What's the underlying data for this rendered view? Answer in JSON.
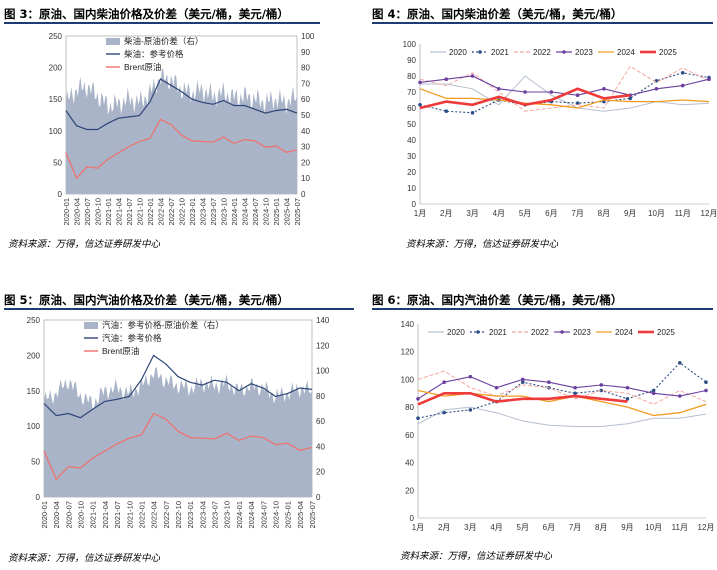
{
  "panels": {
    "p3": {
      "title": "图 3：原油、国内柴油价格及价差（美元/桶，美元/桶）",
      "source": "资料来源：万得，信达证券研发中心",
      "legend": [
        "柴油-原油价差（右）",
        "柴油：参考价格",
        "Brent原油"
      ],
      "y_left_ticks": [
        "0",
        "50",
        "100",
        "150",
        "200",
        "250"
      ],
      "y_right_ticks": [
        "0",
        "10",
        "20",
        "30",
        "40",
        "50",
        "60",
        "70",
        "80",
        "90",
        "100"
      ],
      "x_ticks": [
        "2020-01",
        "2020-04",
        "2020-07",
        "2020-10",
        "2021-01",
        "2021-04",
        "2021-07",
        "2021-10",
        "2022-01",
        "2022-04",
        "2022-07",
        "2022-10",
        "2023-01",
        "2023-04",
        "2023-07",
        "2023-10",
        "2024-01",
        "2024-04",
        "2024-07",
        "2024-10",
        "2025-01",
        "2025-04",
        "2025-07"
      ]
    },
    "p4": {
      "title": "图 4：原油、国内柴油价差（美元/桶，美元/桶）",
      "source": "资料来源：万得，信达证券研发中心",
      "legend": [
        "2020",
        "2021",
        "2022",
        "2023",
        "2024",
        "2025"
      ],
      "y_ticks": [
        "0",
        "10",
        "20",
        "30",
        "40",
        "50",
        "60",
        "70",
        "80",
        "90",
        "100"
      ],
      "x_ticks": [
        "1月",
        "2月",
        "3月",
        "4月",
        "5月",
        "6月",
        "7月",
        "8月",
        "9月",
        "10月",
        "11月",
        "12月"
      ]
    },
    "p5": {
      "title": "图 5：原油、国内汽油价格及价差（美元/桶，美元/桶）",
      "source": "资料来源：万得，信达证券研发中心",
      "legend": [
        "汽油：参考价格-原油价差（右）",
        "汽油：参考价格",
        "Brent原油"
      ],
      "y_left_ticks": [
        "0",
        "50",
        "100",
        "150",
        "200",
        "250"
      ],
      "y_right_ticks": [
        "0",
        "20",
        "40",
        "60",
        "80",
        "100",
        "120",
        "140"
      ],
      "x_ticks": [
        "2020-01",
        "2020-04",
        "2020-07",
        "2020-10",
        "2021-01",
        "2021-04",
        "2021-07",
        "2021-10",
        "2022-01",
        "2022-04",
        "2022-07",
        "2022-10",
        "2023-01",
        "2023-04",
        "2023-07",
        "2023-10",
        "2024-01",
        "2024-04",
        "2024-07",
        "2024-10",
        "2025-01",
        "2025-04",
        "2025-07"
      ]
    },
    "p6": {
      "title": "图 6：原油、国内汽油价差（美元/桶，美元/桶）",
      "source": "资料来源：万得，信达证券研发中心",
      "legend": [
        "2020",
        "2021",
        "2022",
        "2023",
        "2024",
        "2025"
      ],
      "y_ticks": [
        "0",
        "20",
        "40",
        "60",
        "80",
        "100",
        "120",
        "140"
      ],
      "x_ticks": [
        "1月",
        "2月",
        "3月",
        "4月",
        "5月",
        "6月",
        "7月",
        "8月",
        "9月",
        "10月",
        "11月",
        "12月"
      ]
    }
  },
  "colors": {
    "spread_area": "#a9b4c8",
    "product_line": "#2e4677",
    "brent_line": "#f0706a",
    "y2020": "#b4bfd0",
    "y2021": "#2e4e86",
    "y2022": "#f4a6a0",
    "y2023": "#6a3fa0",
    "y2024": "#f29a20",
    "y2025": "#ee3a3a"
  },
  "chart_data": [
    {
      "type": "area",
      "id": "p3",
      "x": [
        "2020-01",
        "2020-04",
        "2020-07",
        "2020-10",
        "2021-01",
        "2021-04",
        "2021-07",
        "2021-10",
        "2022-01",
        "2022-04",
        "2022-07",
        "2022-10",
        "2023-01",
        "2023-04",
        "2023-07",
        "2023-10",
        "2024-01",
        "2024-04",
        "2024-07",
        "2024-10",
        "2025-01",
        "2025-04",
        "2025-07"
      ],
      "series": [
        {
          "axis": "right",
          "values": [
            58,
            66,
            68,
            62,
            56,
            57,
            60,
            58,
            64,
            74,
            72,
            66,
            64,
            66,
            62,
            64,
            61,
            62,
            60,
            58,
            60,
            58,
            62
          ]
        },
        {
          "axis": "left",
          "values": [
            132,
            108,
            102,
            102,
            112,
            120,
            122,
            124,
            146,
            182,
            172,
            162,
            150,
            145,
            142,
            148,
            140,
            140,
            134,
            128,
            132,
            134,
            128
          ]
        },
        {
          "axis": "left",
          "values": [
            65,
            25,
            43,
            41,
            55,
            65,
            75,
            83,
            88,
            118,
            110,
            93,
            84,
            83,
            82,
            90,
            80,
            86,
            84,
            74,
            76,
            66,
            70
          ]
        }
      ],
      "ylim_left": [
        0,
        250
      ],
      "ylim_right": [
        0,
        100
      ]
    },
    {
      "type": "line",
      "id": "p4",
      "categories": [
        "1月",
        "2月",
        "3月",
        "4月",
        "5月",
        "6月",
        "7月",
        "8月",
        "9月",
        "10月",
        "11月",
        "12月"
      ],
      "series": [
        {
          "name": "2020",
          "values": [
            75,
            75,
            72,
            62,
            80,
            68,
            60,
            58,
            60,
            64,
            62,
            63
          ]
        },
        {
          "name": "2021",
          "values": [
            62,
            58,
            57,
            65,
            62,
            64,
            63,
            64,
            66,
            77,
            82,
            79
          ]
        },
        {
          "name": "2022",
          "values": [
            78,
            74,
            82,
            70,
            58,
            60,
            62,
            60,
            86,
            76,
            85,
            77
          ]
        },
        {
          "name": "2023",
          "values": [
            76,
            78,
            80,
            72,
            70,
            70,
            68,
            72,
            68,
            72,
            74,
            78
          ]
        },
        {
          "name": "2024",
          "values": [
            72,
            66,
            66,
            65,
            63,
            62,
            60,
            65,
            64,
            64,
            65,
            64
          ]
        },
        {
          "name": "2025",
          "values": [
            60,
            64,
            62,
            67,
            62,
            65,
            72,
            66,
            68,
            null,
            null,
            null
          ]
        }
      ],
      "ylim": [
        0,
        100
      ]
    },
    {
      "type": "area",
      "id": "p5",
      "x": [
        "2020-01",
        "2020-04",
        "2020-07",
        "2020-10",
        "2021-01",
        "2021-04",
        "2021-07",
        "2021-10",
        "2022-01",
        "2022-04",
        "2022-07",
        "2022-10",
        "2023-01",
        "2023-04",
        "2023-07",
        "2023-10",
        "2024-01",
        "2024-04",
        "2024-07",
        "2024-10",
        "2025-01",
        "2025-04",
        "2025-07"
      ],
      "series": [
        {
          "axis": "right",
          "values": [
            76,
            82,
            92,
            80,
            74,
            84,
            86,
            82,
            88,
            98,
            92,
            88,
            86,
            90,
            88,
            90,
            84,
            88,
            86,
            80,
            82,
            86,
            84
          ]
        },
        {
          "axis": "left",
          "values": [
            132,
            115,
            118,
            112,
            124,
            135,
            138,
            142,
            166,
            200,
            188,
            170,
            162,
            158,
            165,
            162,
            150,
            160,
            154,
            142,
            146,
            154,
            152
          ]
        },
        {
          "axis": "left",
          "values": [
            65,
            25,
            43,
            41,
            55,
            65,
            75,
            83,
            88,
            118,
            110,
            93,
            84,
            83,
            82,
            90,
            80,
            86,
            84,
            74,
            76,
            66,
            70
          ]
        }
      ],
      "ylim_left": [
        0,
        250
      ],
      "ylim_right": [
        0,
        140
      ]
    },
    {
      "type": "line",
      "id": "p6",
      "categories": [
        "1月",
        "2月",
        "3月",
        "4月",
        "5月",
        "6月",
        "7月",
        "8月",
        "9月",
        "10月",
        "11月",
        "12月"
      ],
      "series": [
        {
          "name": "2020",
          "values": [
            68,
            78,
            80,
            76,
            70,
            67,
            66,
            66,
            68,
            72,
            72,
            75
          ]
        },
        {
          "name": "2021",
          "values": [
            72,
            76,
            78,
            84,
            98,
            94,
            90,
            92,
            86,
            92,
            112,
            98
          ]
        },
        {
          "name": "2022",
          "values": [
            100,
            106,
            94,
            88,
            96,
            94,
            86,
            92,
            90,
            82,
            92,
            84
          ]
        },
        {
          "name": "2023",
          "values": [
            86,
            98,
            102,
            94,
            100,
            98,
            94,
            96,
            94,
            90,
            88,
            92
          ]
        },
        {
          "name": "2024",
          "values": [
            92,
            88,
            90,
            88,
            88,
            84,
            88,
            84,
            80,
            74,
            76,
            82
          ]
        },
        {
          "name": "2025",
          "values": [
            82,
            90,
            90,
            84,
            86,
            86,
            88,
            86,
            84,
            null,
            null,
            null
          ]
        }
      ],
      "ylim": [
        0,
        140
      ]
    }
  ]
}
